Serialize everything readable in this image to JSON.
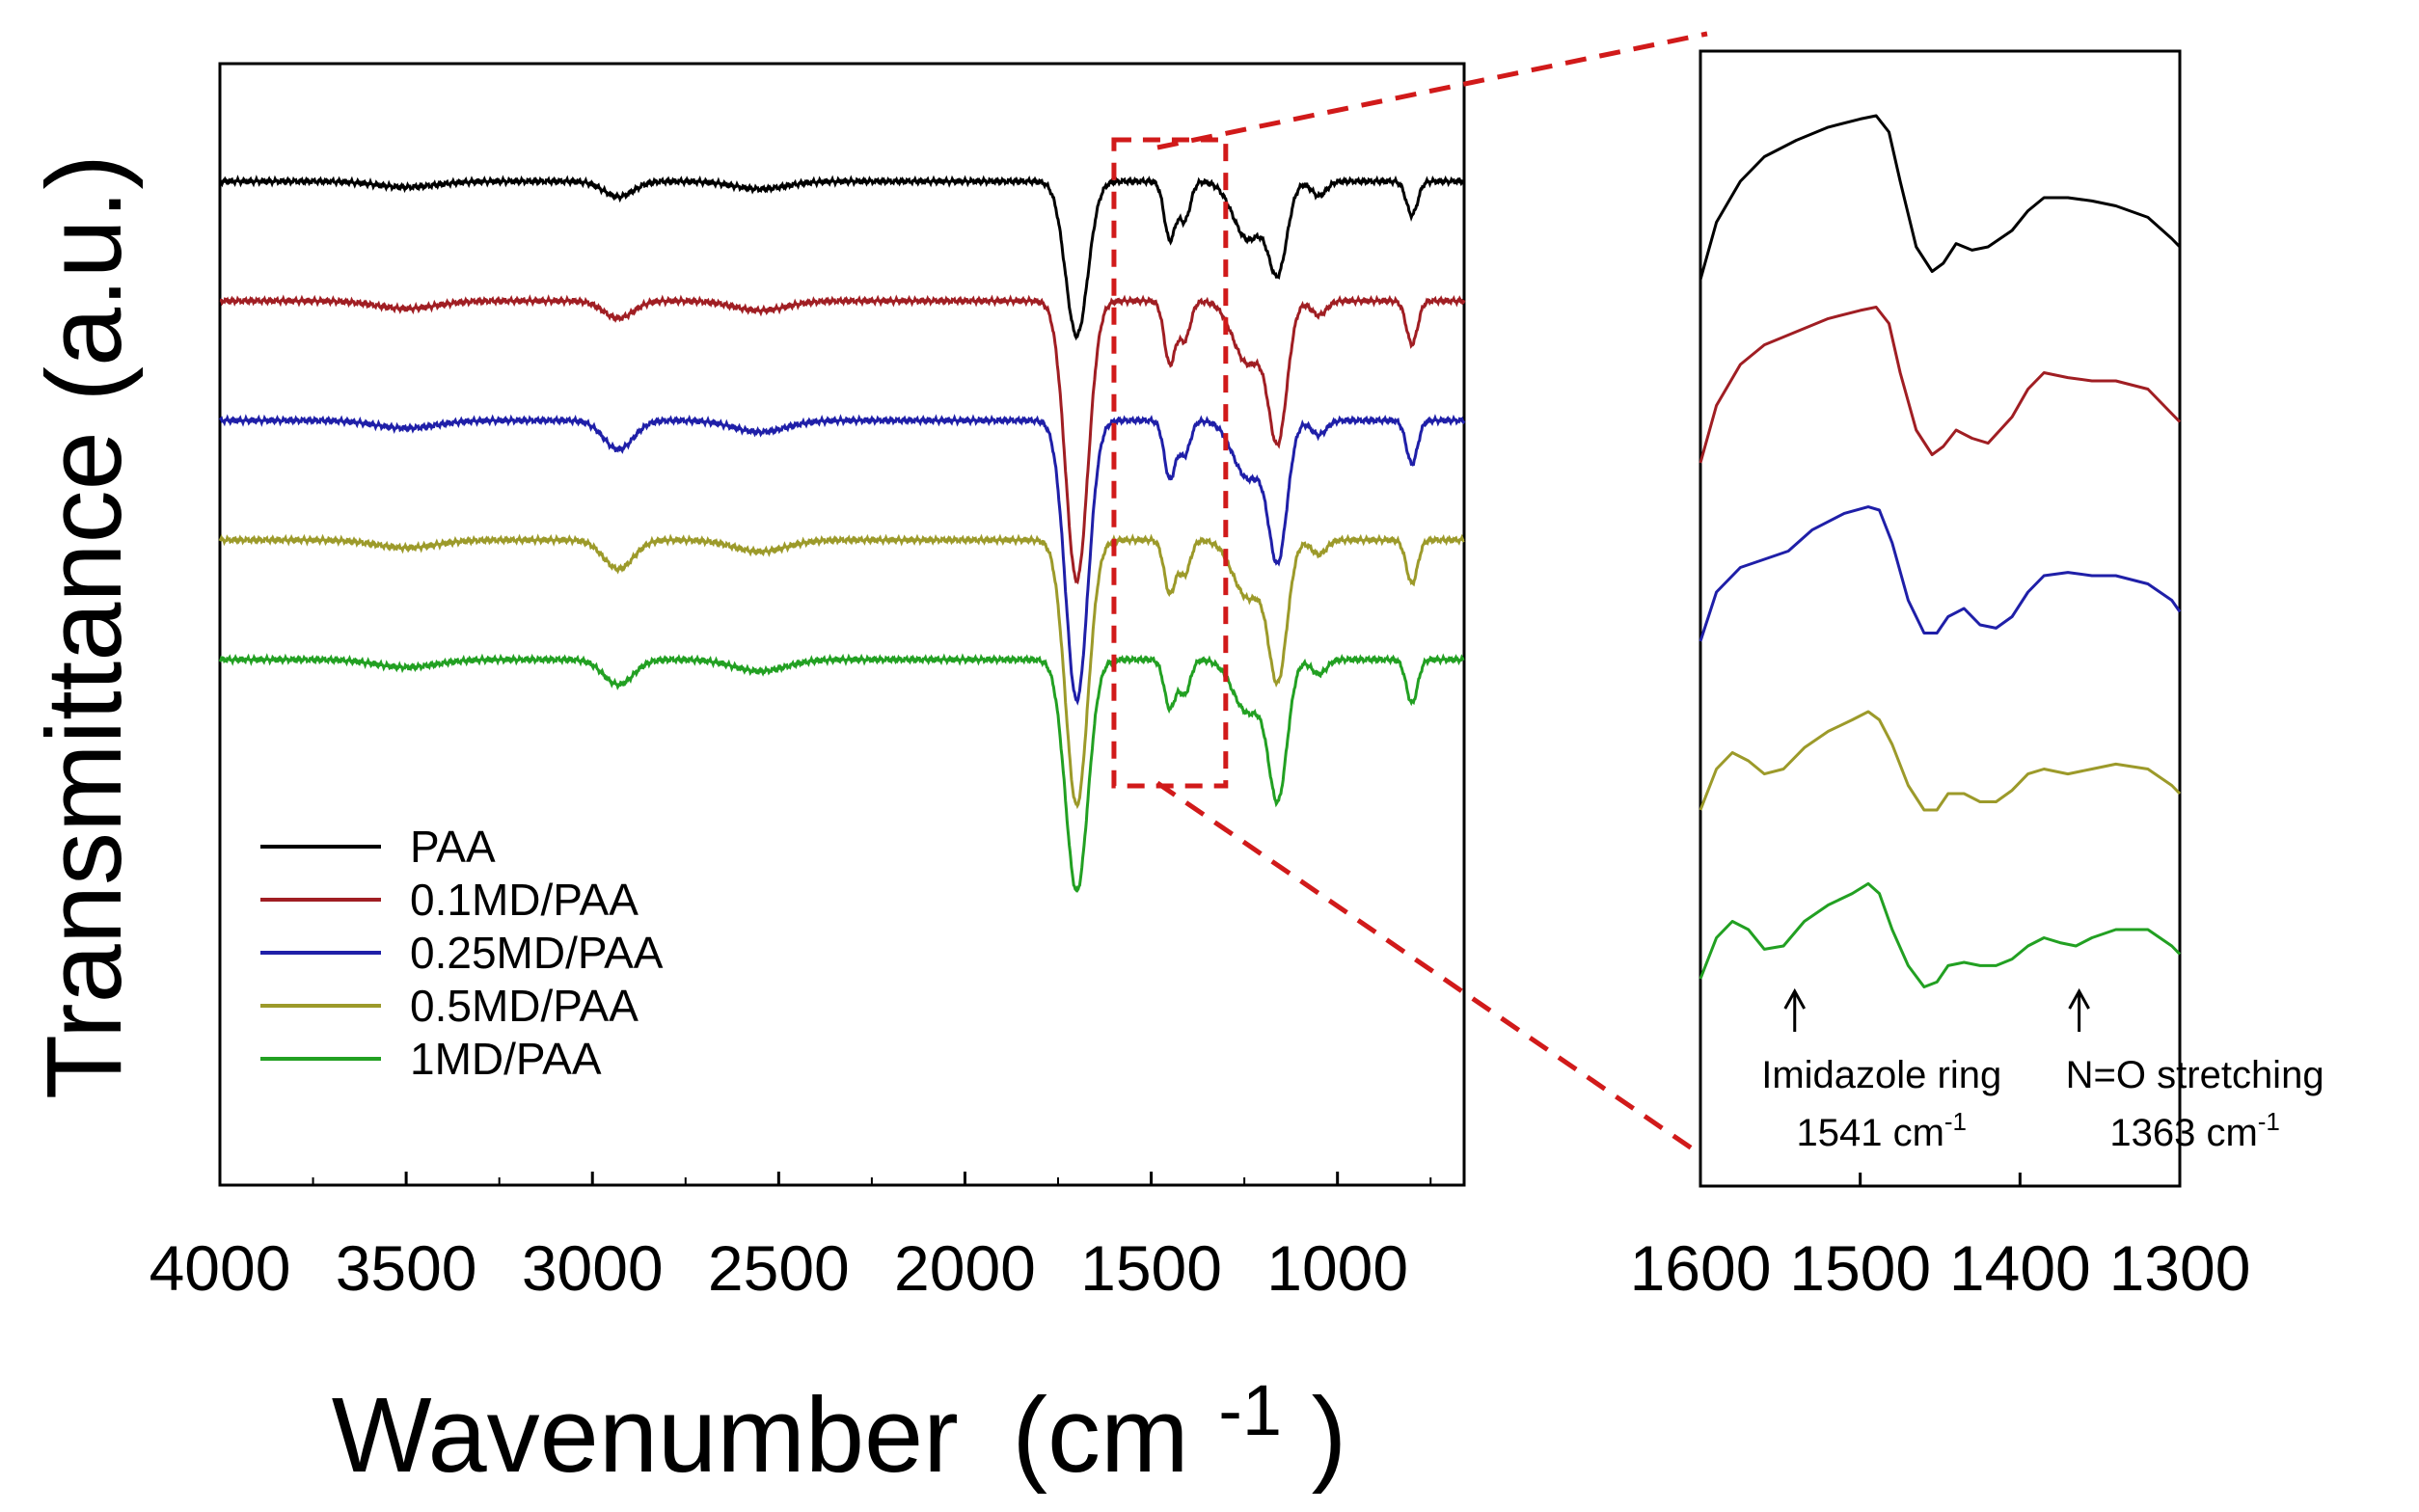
{
  "chart_data": [
    {
      "type": "line",
      "title": "",
      "xlabel": "Wavenumber",
      "xlabel_unit_base": "(cm",
      "xlabel_unit_sup": "-1",
      "xlabel_unit_close": ")",
      "ylabel": "Transmittance (a.u.)",
      "xlim": [
        4000,
        660
      ],
      "x_ticks": [
        "4000",
        "3500",
        "3000",
        "2500",
        "2000",
        "1500",
        "1000"
      ],
      "x_tick_values": [
        4000,
        3500,
        3000,
        2500,
        2000,
        1500,
        1000
      ],
      "grid": false,
      "legend_position": "bottom-left",
      "zoom_box": {
        "x_from": 1600,
        "x_to": 1300
      },
      "series": [
        {
          "name": "PAA",
          "color": "#000000",
          "baseline": 0,
          "features": [
            {
              "c": 3500,
              "d": 0.06,
              "w": 80
            },
            {
              "c": 2930,
              "d": 0.16,
              "w": 40
            },
            {
              "c": 2550,
              "d": 0.08,
              "w": 70
            },
            {
              "c": 1700,
              "d": 1.6,
              "w": 30
            },
            {
              "c": 1450,
              "d": 0.6,
              "w": 15
            },
            {
              "c": 1410,
              "d": 0.4,
              "w": 15
            },
            {
              "c": 1240,
              "d": 0.6,
              "w": 40
            },
            {
              "c": 1160,
              "d": 0.9,
              "w": 25
            },
            {
              "c": 1050,
              "d": 0.15,
              "w": 20
            },
            {
              "c": 800,
              "d": 0.35,
              "w": 15
            }
          ]
        },
        {
          "name": "0.1MD/PAA",
          "color": "#a01e23",
          "baseline": 1,
          "features": [
            {
              "c": 3500,
              "d": 0.08,
              "w": 80
            },
            {
              "c": 2930,
              "d": 0.18,
              "w": 40
            },
            {
              "c": 2550,
              "d": 0.1,
              "w": 70
            },
            {
              "c": 1700,
              "d": 2.9,
              "w": 30
            },
            {
              "c": 1450,
              "d": 0.65,
              "w": 15
            },
            {
              "c": 1410,
              "d": 0.4,
              "w": 15
            },
            {
              "c": 1240,
              "d": 0.65,
              "w": 40
            },
            {
              "c": 1160,
              "d": 1.4,
              "w": 25
            },
            {
              "c": 1050,
              "d": 0.15,
              "w": 20
            },
            {
              "c": 800,
              "d": 0.45,
              "w": 15
            }
          ]
        },
        {
          "name": "0.25MD/PAA",
          "color": "#1f1fa8",
          "baseline": 2,
          "features": [
            {
              "c": 3500,
              "d": 0.08,
              "w": 80
            },
            {
              "c": 2930,
              "d": 0.3,
              "w": 40
            },
            {
              "c": 2550,
              "d": 0.12,
              "w": 70
            },
            {
              "c": 1700,
              "d": 2.9,
              "w": 30
            },
            {
              "c": 1450,
              "d": 0.6,
              "w": 15
            },
            {
              "c": 1410,
              "d": 0.35,
              "w": 15
            },
            {
              "c": 1240,
              "d": 0.6,
              "w": 40
            },
            {
              "c": 1160,
              "d": 1.4,
              "w": 25
            },
            {
              "c": 1050,
              "d": 0.15,
              "w": 20
            },
            {
              "c": 800,
              "d": 0.45,
              "w": 15
            }
          ]
        },
        {
          "name": "0.5MD/PAA",
          "color": "#9c9a2a",
          "baseline": 3,
          "features": [
            {
              "c": 3500,
              "d": 0.08,
              "w": 80
            },
            {
              "c": 2930,
              "d": 0.3,
              "w": 40
            },
            {
              "c": 2550,
              "d": 0.12,
              "w": 70
            },
            {
              "c": 1700,
              "d": 2.75,
              "w": 30
            },
            {
              "c": 1450,
              "d": 0.55,
              "w": 15
            },
            {
              "c": 1410,
              "d": 0.35,
              "w": 15
            },
            {
              "c": 1240,
              "d": 0.6,
              "w": 40
            },
            {
              "c": 1160,
              "d": 1.4,
              "w": 25
            },
            {
              "c": 1050,
              "d": 0.15,
              "w": 20
            },
            {
              "c": 800,
              "d": 0.45,
              "w": 15
            }
          ]
        },
        {
          "name": "1MD/PAA",
          "color": "#22a022",
          "baseline": 4,
          "features": [
            {
              "c": 3500,
              "d": 0.08,
              "w": 80
            },
            {
              "c": 2930,
              "d": 0.26,
              "w": 40
            },
            {
              "c": 2550,
              "d": 0.12,
              "w": 70
            },
            {
              "c": 1700,
              "d": 2.4,
              "w": 30
            },
            {
              "c": 1450,
              "d": 0.5,
              "w": 15
            },
            {
              "c": 1410,
              "d": 0.35,
              "w": 15
            },
            {
              "c": 1240,
              "d": 0.55,
              "w": 40
            },
            {
              "c": 1160,
              "d": 1.4,
              "w": 25
            },
            {
              "c": 1050,
              "d": 0.15,
              "w": 20
            },
            {
              "c": 800,
              "d": 0.45,
              "w": 15
            }
          ]
        }
      ]
    },
    {
      "type": "line",
      "title": "",
      "xlabel": "",
      "ylabel": "",
      "xlim": [
        1600,
        1300
      ],
      "x_ticks": [
        "1600",
        "1500",
        "1400",
        "1300"
      ],
      "x_tick_values": [
        1600,
        1500,
        1400,
        1300
      ],
      "annotations": [
        {
          "label": "Imidazole ring",
          "value_text": "1541 cm",
          "value_sup": "-1",
          "x": 1541
        },
        {
          "label": "N=O stretching",
          "value_text": "1363 cm",
          "value_sup": "-1",
          "x": 1363
        }
      ],
      "series": [
        {
          "name": "PAA",
          "color": "#000000",
          "profile": [
            [
              1600,
              0.0
            ],
            [
              1590,
              0.35
            ],
            [
              1575,
              0.6
            ],
            [
              1560,
              0.75
            ],
            [
              1540,
              0.85
            ],
            [
              1520,
              0.93
            ],
            [
              1500,
              0.98
            ],
            [
              1490,
              1.0
            ],
            [
              1482,
              0.9
            ],
            [
              1475,
              0.6
            ],
            [
              1465,
              0.2
            ],
            [
              1455,
              0.05
            ],
            [
              1448,
              0.1
            ],
            [
              1440,
              0.22
            ],
            [
              1430,
              0.18
            ],
            [
              1420,
              0.2
            ],
            [
              1405,
              0.3
            ],
            [
              1395,
              0.42
            ],
            [
              1385,
              0.5
            ],
            [
              1370,
              0.5
            ],
            [
              1355,
              0.48
            ],
            [
              1340,
              0.45
            ],
            [
              1320,
              0.38
            ],
            [
              1305,
              0.25
            ],
            [
              1300,
              0.2
            ]
          ]
        },
        {
          "name": "0.1MD/PAA",
          "color": "#a01e23",
          "profile": [
            [
              1600,
              0.0
            ],
            [
              1590,
              0.35
            ],
            [
              1575,
              0.6
            ],
            [
              1560,
              0.72
            ],
            [
              1540,
              0.8
            ],
            [
              1520,
              0.88
            ],
            [
              1500,
              0.93
            ],
            [
              1490,
              0.95
            ],
            [
              1482,
              0.85
            ],
            [
              1475,
              0.55
            ],
            [
              1465,
              0.2
            ],
            [
              1455,
              0.05
            ],
            [
              1448,
              0.1
            ],
            [
              1440,
              0.2
            ],
            [
              1430,
              0.15
            ],
            [
              1420,
              0.12
            ],
            [
              1405,
              0.28
            ],
            [
              1395,
              0.45
            ],
            [
              1385,
              0.55
            ],
            [
              1370,
              0.52
            ],
            [
              1355,
              0.5
            ],
            [
              1340,
              0.5
            ],
            [
              1320,
              0.45
            ],
            [
              1305,
              0.3
            ],
            [
              1300,
              0.25
            ]
          ]
        },
        {
          "name": "0.25MD/PAA",
          "color": "#1f1fa8",
          "profile": [
            [
              1600,
              0.0
            ],
            [
              1590,
              0.3
            ],
            [
              1575,
              0.45
            ],
            [
              1560,
              0.5
            ],
            [
              1545,
              0.55
            ],
            [
              1530,
              0.68
            ],
            [
              1510,
              0.78
            ],
            [
              1495,
              0.82
            ],
            [
              1488,
              0.8
            ],
            [
              1480,
              0.6
            ],
            [
              1470,
              0.25
            ],
            [
              1460,
              0.05
            ],
            [
              1452,
              0.05
            ],
            [
              1445,
              0.15
            ],
            [
              1435,
              0.2
            ],
            [
              1425,
              0.1
            ],
            [
              1415,
              0.08
            ],
            [
              1405,
              0.15
            ],
            [
              1395,
              0.3
            ],
            [
              1385,
              0.4
            ],
            [
              1370,
              0.42
            ],
            [
              1355,
              0.4
            ],
            [
              1340,
              0.4
            ],
            [
              1320,
              0.35
            ],
            [
              1305,
              0.25
            ],
            [
              1300,
              0.18
            ]
          ]
        },
        {
          "name": "0.5MD/PAA",
          "color": "#9c9a2a",
          "profile": [
            [
              1600,
              0.0
            ],
            [
              1590,
              0.25
            ],
            [
              1580,
              0.35
            ],
            [
              1570,
              0.3
            ],
            [
              1560,
              0.22
            ],
            [
              1548,
              0.25
            ],
            [
              1535,
              0.38
            ],
            [
              1520,
              0.48
            ],
            [
              1505,
              0.55
            ],
            [
              1495,
              0.6
            ],
            [
              1488,
              0.55
            ],
            [
              1480,
              0.4
            ],
            [
              1470,
              0.15
            ],
            [
              1460,
              0.0
            ],
            [
              1452,
              0.0
            ],
            [
              1445,
              0.1
            ],
            [
              1435,
              0.1
            ],
            [
              1425,
              0.05
            ],
            [
              1415,
              0.05
            ],
            [
              1405,
              0.12
            ],
            [
              1395,
              0.22
            ],
            [
              1385,
              0.25
            ],
            [
              1370,
              0.22
            ],
            [
              1355,
              0.25
            ],
            [
              1340,
              0.28
            ],
            [
              1320,
              0.25
            ],
            [
              1305,
              0.15
            ],
            [
              1300,
              0.1
            ]
          ]
        },
        {
          "name": "1MD/PAA",
          "color": "#22a022",
          "profile": [
            [
              1600,
              0.0
            ],
            [
              1590,
              0.25
            ],
            [
              1580,
              0.35
            ],
            [
              1570,
              0.3
            ],
            [
              1560,
              0.18
            ],
            [
              1548,
              0.2
            ],
            [
              1535,
              0.35
            ],
            [
              1520,
              0.45
            ],
            [
              1505,
              0.52
            ],
            [
              1495,
              0.58
            ],
            [
              1488,
              0.52
            ],
            [
              1480,
              0.3
            ],
            [
              1470,
              0.08
            ],
            [
              1460,
              -0.05
            ],
            [
              1452,
              -0.02
            ],
            [
              1445,
              0.08
            ],
            [
              1435,
              0.1
            ],
            [
              1425,
              0.08
            ],
            [
              1415,
              0.08
            ],
            [
              1405,
              0.12
            ],
            [
              1395,
              0.2
            ],
            [
              1385,
              0.25
            ],
            [
              1375,
              0.22
            ],
            [
              1365,
              0.2
            ],
            [
              1355,
              0.25
            ],
            [
              1340,
              0.3
            ],
            [
              1320,
              0.3
            ],
            [
              1305,
              0.2
            ],
            [
              1300,
              0.15
            ]
          ]
        }
      ]
    }
  ]
}
